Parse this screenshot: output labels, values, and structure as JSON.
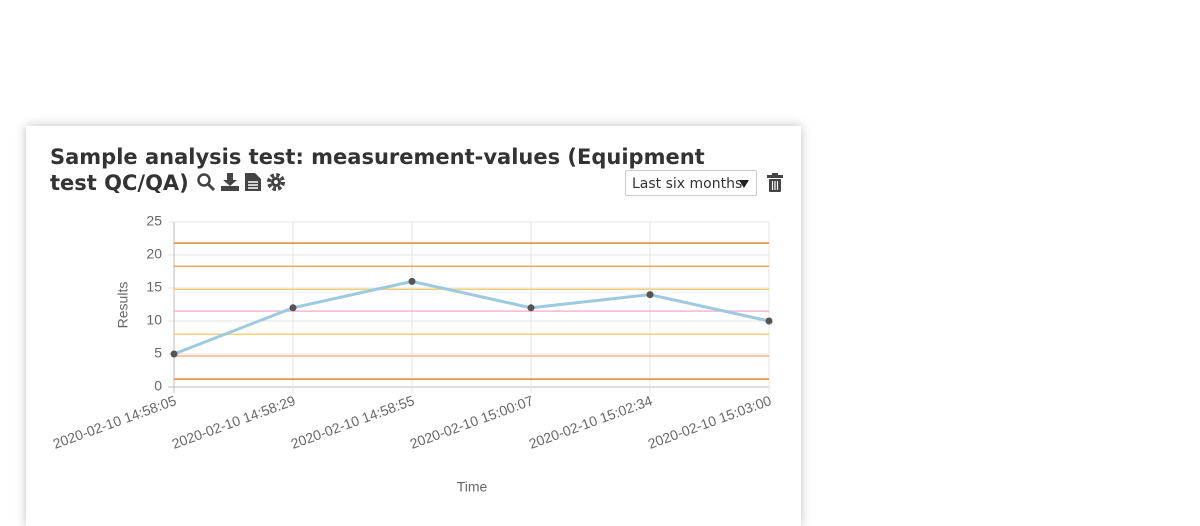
{
  "card": {
    "title": "Sample analysis test: measurement-values (Equipment test QC/QA)",
    "period": "Last six months"
  },
  "chart_data": {
    "type": "line",
    "categories": [
      "2020-02-10 14:58:05",
      "2020-02-10 14:58:29",
      "2020-02-10 14:58:55",
      "2020-02-10 15:00:07",
      "2020-02-10 15:02:34",
      "2020-02-10 15:03:00"
    ],
    "series": [
      {
        "color": "#9ecae1",
        "values": [
          5,
          12,
          16,
          12,
          14,
          10
        ]
      }
    ],
    "x_label": "Time",
    "y_label": "Results",
    "ylim": [
      0,
      25
    ],
    "yticks": [
      0,
      5,
      10,
      15,
      20,
      25
    ],
    "grid": true,
    "reference_lines": [
      {
        "value": 21.8,
        "color": "#e8842c"
      },
      {
        "value": 18.3,
        "color": "#f4a460"
      },
      {
        "value": 14.8,
        "color": "#f5cf7a"
      },
      {
        "value": 11.5,
        "color": "#f7b6d2"
      },
      {
        "value": 8,
        "color": "#f5cf7a"
      },
      {
        "value": 4.7,
        "color": "#f7b58a"
      },
      {
        "value": 1.2,
        "color": "#e8842c"
      }
    ]
  }
}
